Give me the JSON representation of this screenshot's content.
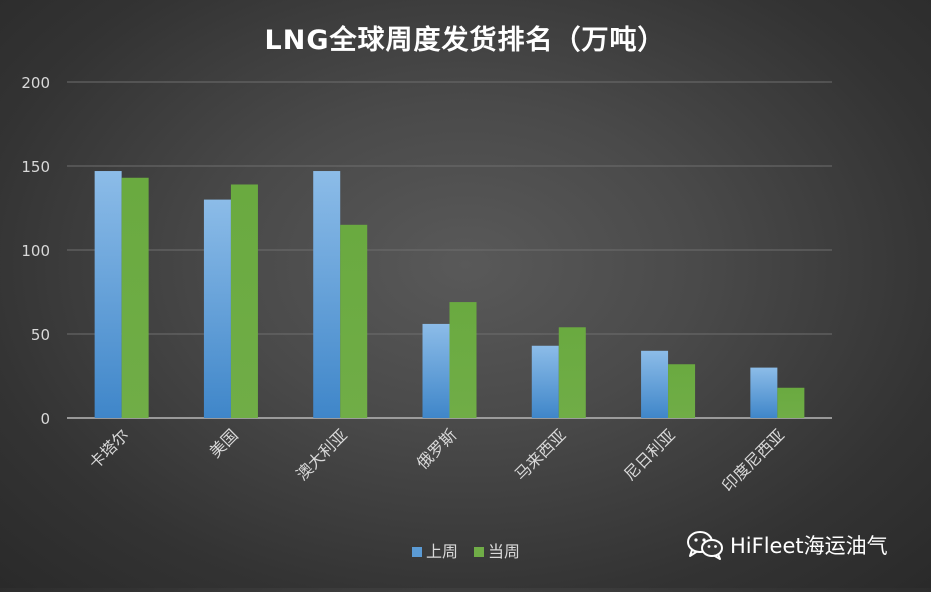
{
  "chart_data": {
    "type": "bar",
    "title": "LNG全球周度发货排名（万吨）",
    "categories": [
      "卡塔尔",
      "美国",
      "澳大利亚",
      "俄罗斯",
      "马来西亚",
      "尼日利亚",
      "印度尼西亚"
    ],
    "series": [
      {
        "name": "上周",
        "values": [
          147,
          130,
          147,
          56,
          43,
          40,
          30
        ],
        "color": "#5b9bd5"
      },
      {
        "name": "当周",
        "values": [
          143,
          139,
          115,
          69,
          54,
          32,
          18
        ],
        "color": "#70ad47"
      }
    ],
    "ylim": [
      0,
      200
    ],
    "yticks": [
      0,
      50,
      100,
      150,
      200
    ],
    "grid": true,
    "legend_position": "bottom"
  },
  "watermark": {
    "text": "HiFleet海运油气",
    "icon": "wechat-icon"
  }
}
